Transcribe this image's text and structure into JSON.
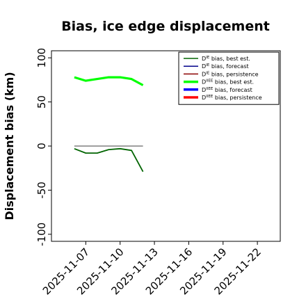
{
  "chart_data": {
    "type": "line",
    "title": "Bias, ice edge displacement",
    "xlabel": "",
    "ylabel": "Displacement bias (km)",
    "x_axis": {
      "type": "date",
      "range": [
        "2025-11-04",
        "2025-11-24"
      ],
      "ticks": [
        "2025-11-07",
        "2025-11-10",
        "2025-11-13",
        "2025-11-16",
        "2025-11-19",
        "2025-11-22"
      ],
      "highlighted_tick": "2025-11-13",
      "highlight_color": "#228b22"
    },
    "y_axis": {
      "range": [
        -108,
        108
      ],
      "ticks": [
        -100,
        -50,
        0,
        50,
        100
      ]
    },
    "grid": false,
    "zero_line": {
      "y": 0,
      "color": "#666666"
    },
    "legend": {
      "placement": "top-right",
      "entries": [
        {
          "base": "D",
          "sup": "IE",
          "rest": " bias, best est.",
          "color": "#006400",
          "thick": false
        },
        {
          "base": "D",
          "sup": "IE",
          "rest": " bias, forecast",
          "color": "#00008b",
          "thick": false
        },
        {
          "base": "D",
          "sup": "IE",
          "rest": " bias, persistence",
          "color": "#8b0000",
          "thick": false
        },
        {
          "base": "D",
          "sup": "IIEE",
          "rest": " bias, best est.",
          "color": "#00ff00",
          "thick": true
        },
        {
          "base": "D",
          "sup": "IIEE",
          "rest": " bias, forecast",
          "color": "#0000ff",
          "thick": true
        },
        {
          "base": "D",
          "sup": "IIEE",
          "rest": " bias, persistence",
          "color": "#ff0000",
          "thick": true
        }
      ]
    },
    "series": [
      {
        "name": "DIE bias, best est.",
        "color": "#006400",
        "x": [
          "2025-11-06",
          "2025-11-07",
          "2025-11-08",
          "2025-11-09",
          "2025-11-10",
          "2025-11-11",
          "2025-11-12"
        ],
        "y": [
          -3,
          -8,
          -8,
          -4,
          -3,
          -5,
          -29
        ]
      },
      {
        "name": "DIIEE bias, best est.",
        "color": "#00ff00",
        "x": [
          "2025-11-06",
          "2025-11-07",
          "2025-11-08",
          "2025-11-09",
          "2025-11-10",
          "2025-11-11",
          "2025-11-12"
        ],
        "y": [
          78,
          74,
          76,
          78,
          78,
          76,
          69
        ]
      }
    ]
  }
}
